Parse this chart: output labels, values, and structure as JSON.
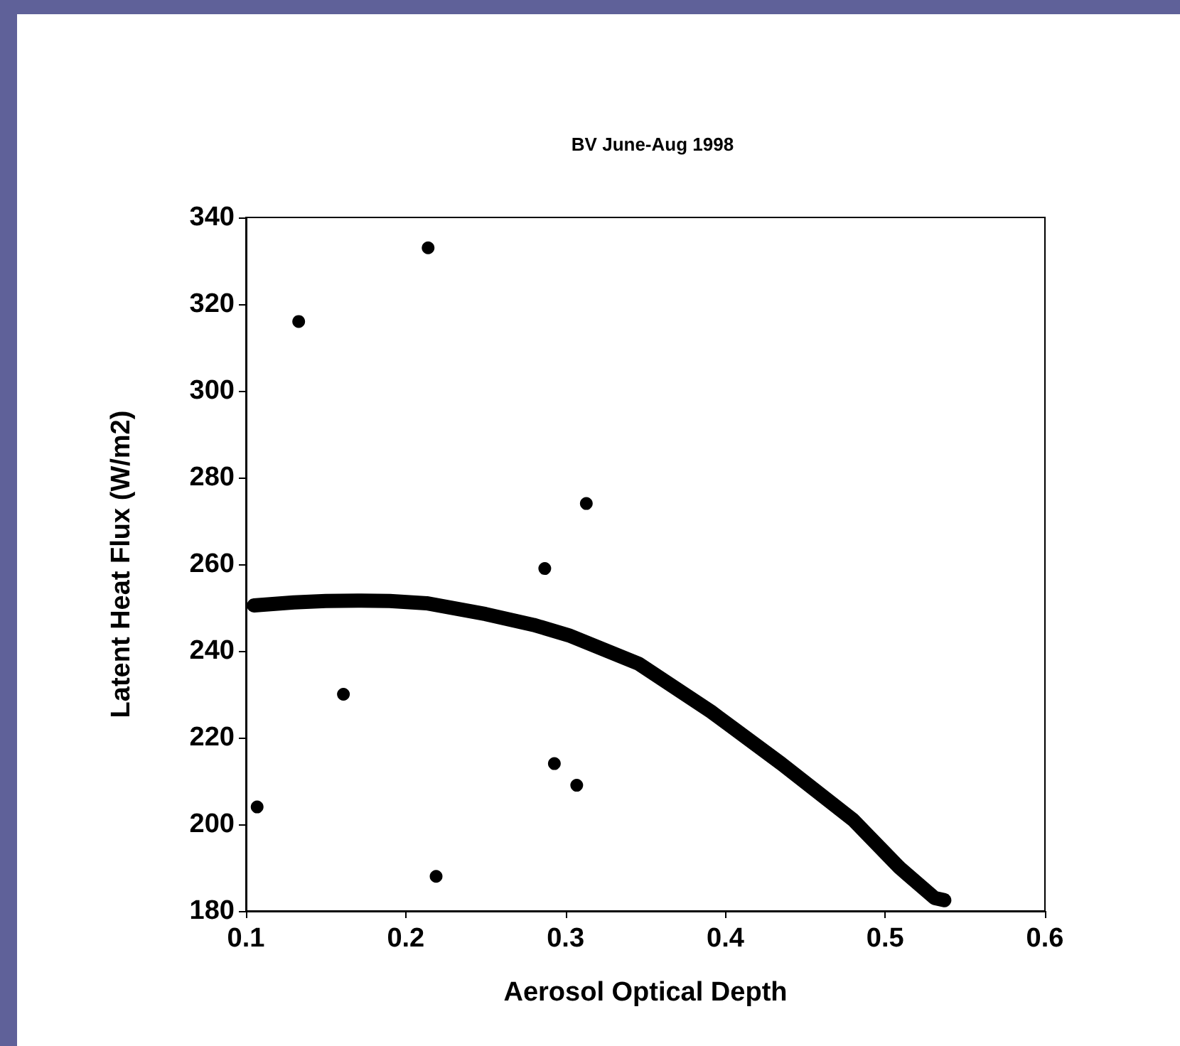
{
  "chart_data": {
    "type": "scatter",
    "title": "BV June-Aug 1998",
    "xlabel": "Aerosol Optical Depth",
    "ylabel": "Latent Heat Flux (W/m2)",
    "xlim": [
      0.1,
      0.6
    ],
    "xticks": [
      0.1,
      0.2,
      0.3,
      0.4,
      0.5,
      0.6
    ],
    "ylim": [
      180,
      340
    ],
    "yticks": [
      180,
      200,
      220,
      240,
      260,
      280,
      300,
      320,
      340
    ],
    "grid": false,
    "marker": "circle",
    "series": [
      {
        "color": "#000000",
        "x": [
          0.107,
          0.133,
          0.161,
          0.214,
          0.219,
          0.287,
          0.293,
          0.307,
          0.313
        ],
        "values": [
          204,
          316,
          230,
          333,
          188,
          259,
          214,
          209,
          274
        ]
      },
      {
        "type": "line",
        "color": "#000000",
        "marker": "none",
        "line_style": "solid",
        "x": [
          0.105,
          0.13,
          0.15,
          0.17,
          0.19,
          0.213,
          0.25,
          0.28,
          0.302,
          0.346,
          0.391,
          0.435,
          0.48,
          0.509,
          0.531,
          0.537
        ],
        "values": [
          250.5,
          251.2,
          251.5,
          251.6,
          251.5,
          251,
          248.5,
          246,
          243.6,
          237,
          226,
          214,
          201,
          190,
          183,
          182.5
        ]
      }
    ]
  }
}
